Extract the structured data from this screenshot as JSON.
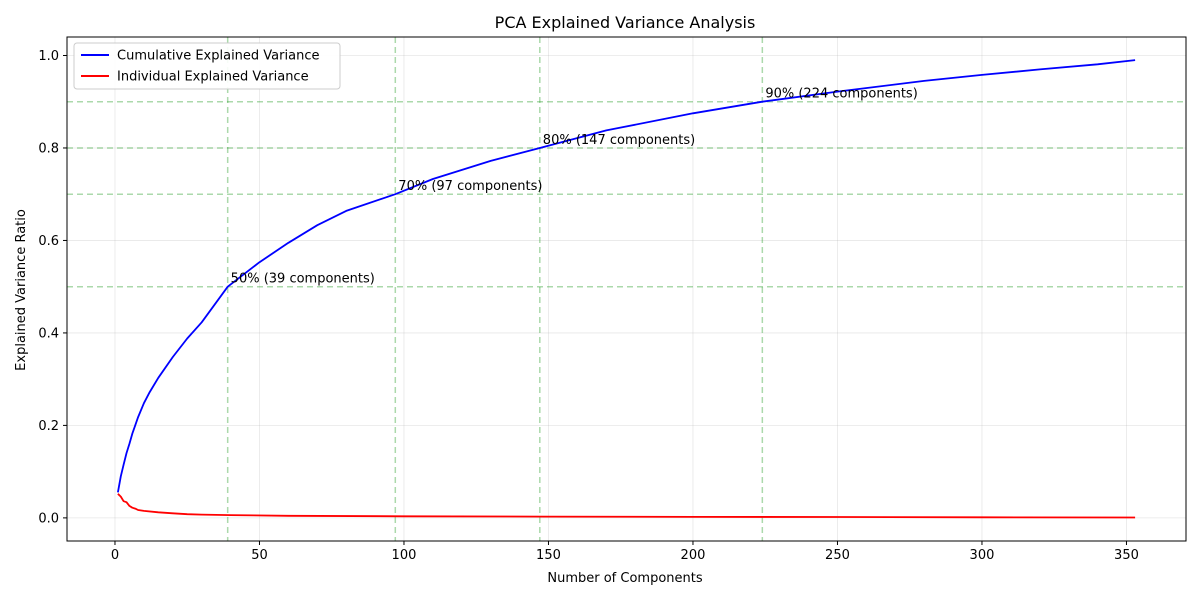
{
  "chart_data": {
    "type": "line",
    "title": "PCA Explained Variance Analysis",
    "xlabel": "Number of Components",
    "ylabel": "Explained Variance Ratio",
    "xlim": [
      -16.6,
      370.6
    ],
    "ylim": [
      -0.05,
      1.04
    ],
    "xticks": [
      0,
      50,
      100,
      150,
      200,
      250,
      300,
      350
    ],
    "yticks": [
      0.0,
      0.2,
      0.4,
      0.6,
      0.8,
      1.0
    ],
    "grid": true,
    "legend_position": "upper-left",
    "series": [
      {
        "name": "Cumulative Explained Variance",
        "color": "#0000ff",
        "x": [
          1,
          2,
          3,
          4,
          5,
          6,
          7,
          8,
          10,
          12,
          15,
          20,
          25,
          30,
          39,
          50,
          60,
          70,
          80,
          97,
          110,
          130,
          147,
          170,
          200,
          224,
          250,
          280,
          300,
          320,
          340,
          353
        ],
        "y": [
          0.055,
          0.09,
          0.115,
          0.14,
          0.16,
          0.182,
          0.2,
          0.218,
          0.248,
          0.272,
          0.303,
          0.348,
          0.388,
          0.423,
          0.5,
          0.553,
          0.595,
          0.633,
          0.664,
          0.7,
          0.733,
          0.772,
          0.8,
          0.838,
          0.875,
          0.9,
          0.922,
          0.945,
          0.958,
          0.97,
          0.981,
          0.99
        ]
      },
      {
        "name": "Individual Explained Variance",
        "color": "#ff0000",
        "x": [
          1,
          2,
          3,
          4,
          5,
          6,
          7,
          8,
          10,
          15,
          20,
          25,
          30,
          40,
          60,
          100,
          150,
          200,
          250,
          300,
          353
        ],
        "y": [
          0.052,
          0.046,
          0.036,
          0.034,
          0.026,
          0.022,
          0.02,
          0.017,
          0.015,
          0.012,
          0.01,
          0.008,
          0.007,
          0.006,
          0.0045,
          0.0035,
          0.0028,
          0.0022,
          0.0018,
          0.0012,
          0.0008
        ]
      }
    ],
    "threshold_lines": {
      "color": "#2ca02c",
      "horizontal": [
        0.5,
        0.7,
        0.8,
        0.9
      ],
      "vertical": [
        39,
        97,
        147,
        224
      ]
    },
    "annotations": [
      {
        "text": "50% (39 components)",
        "x": 39,
        "y": 0.5
      },
      {
        "text": "70% (97 components)",
        "x": 97,
        "y": 0.7
      },
      {
        "text": "80% (147 components)",
        "x": 147,
        "y": 0.8
      },
      {
        "text": "90% (224 components)",
        "x": 224,
        "y": 0.9
      }
    ]
  }
}
